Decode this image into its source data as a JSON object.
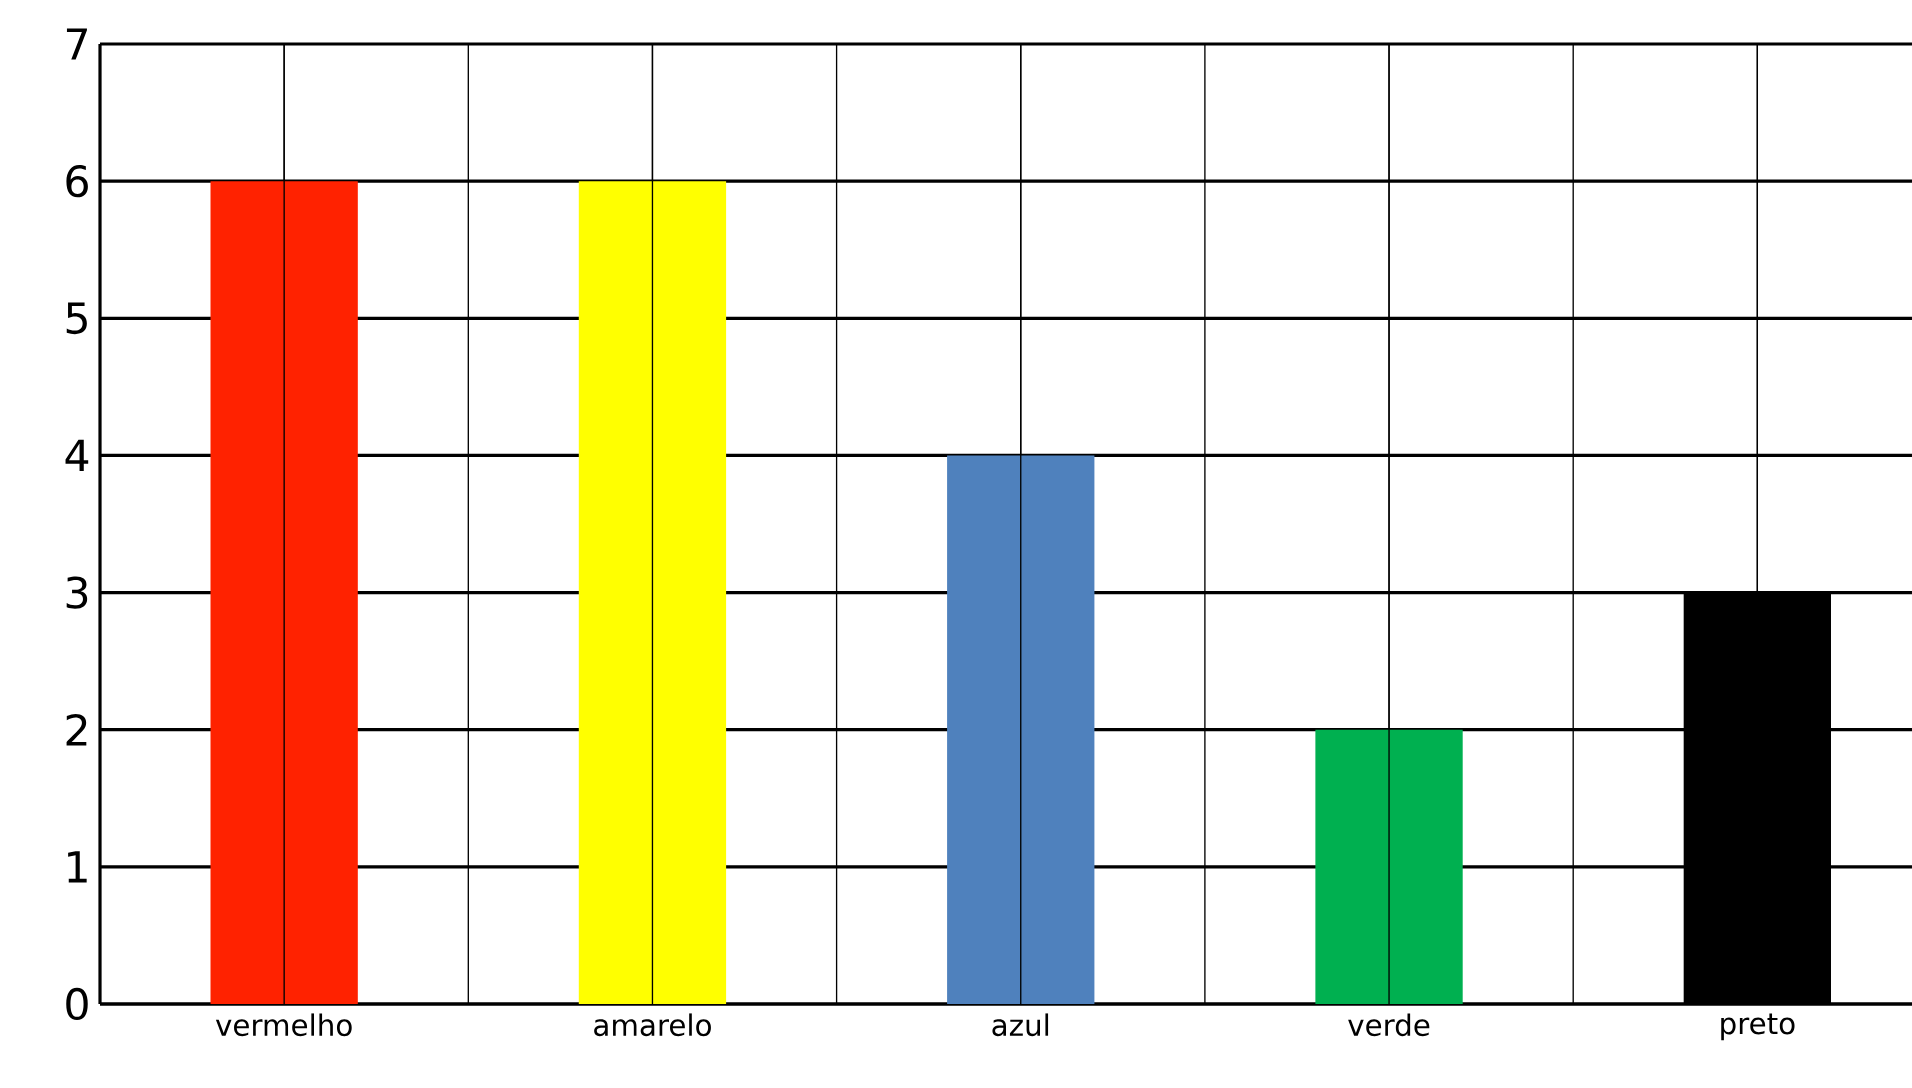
{
  "chart_data": {
    "type": "bar",
    "categories": [
      "vermelho",
      "amarelo",
      "azul",
      "verde",
      "preto"
    ],
    "values": [
      6,
      6,
      4,
      2,
      3
    ],
    "colors": [
      "#ff2200",
      "#ffff00",
      "#4f81bd",
      "#00b050",
      "#000000"
    ],
    "ylim": [
      0,
      7
    ],
    "yticks": [
      0,
      1,
      2,
      3,
      4,
      5,
      6,
      7
    ],
    "grid": true
  }
}
